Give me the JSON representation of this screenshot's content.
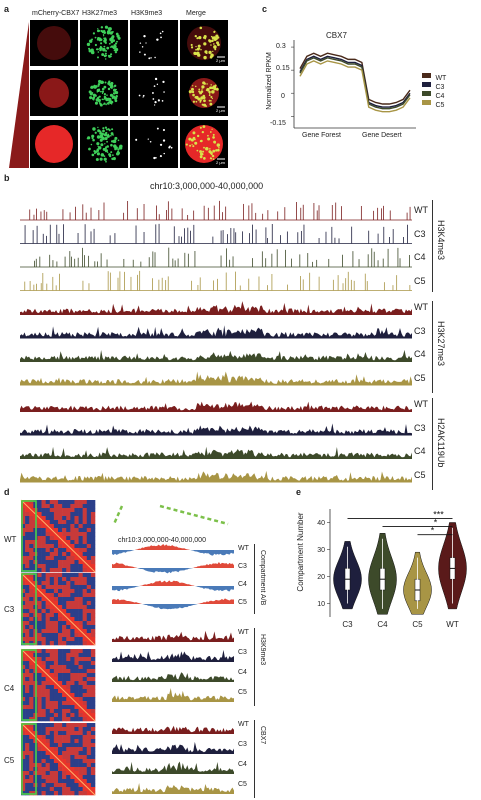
{
  "panel_labels": {
    "a": "a",
    "b": "b",
    "c": "c",
    "d": "d",
    "e": "e"
  },
  "panel_a": {
    "columns": [
      "mCherry-CBX7",
      "H3K27me3",
      "H3K9me3",
      "Merge"
    ],
    "scale_bar": "2 μm"
  },
  "panel_c": {
    "title": "CBX7",
    "ylabel": "Normalized RPKM",
    "xlabels": [
      "Gene Forest",
      "Gene Desert"
    ],
    "legend": [
      {
        "name": "WT",
        "color": "#4a2a1a"
      },
      {
        "name": "C3",
        "color": "#1e1f3d"
      },
      {
        "name": "C4",
        "color": "#3d4a2a"
      },
      {
        "name": "C5",
        "color": "#a89545"
      }
    ],
    "yticks": [
      "0.3",
      "0.15",
      "0",
      "-0.15"
    ]
  },
  "panel_b": {
    "region": "chr10:3,000,000-40,000,000",
    "groups": [
      {
        "mark": "H3K4me3",
        "tracks": [
          "WT",
          "C3",
          "C4",
          "C5"
        ]
      },
      {
        "mark": "H3K27me3",
        "tracks": [
          "WT",
          "C3",
          "C4",
          "C5"
        ]
      },
      {
        "mark": "H2AK119Ub",
        "tracks": [
          "WT",
          "C3",
          "C4",
          "C5"
        ]
      }
    ]
  },
  "panel_d": {
    "heatmap_labels": [
      "WT",
      "C3",
      "C4",
      "C5"
    ],
    "region": "chr10:3,000,000-40,000,000",
    "groups": [
      {
        "mark": "Compartment A/B",
        "tracks": [
          "WT",
          "C3",
          "C4",
          "C5"
        ]
      },
      {
        "mark": "H3K9me3",
        "tracks": [
          "WT",
          "C3",
          "C4",
          "C5"
        ]
      },
      {
        "mark": "CBX7",
        "tracks": [
          "WT",
          "C3",
          "C4",
          "C5"
        ]
      }
    ]
  },
  "chart_data": {
    "type": "violin",
    "title": "",
    "ylabel": "Compartment Number",
    "categories": [
      "C3",
      "C4",
      "C5",
      "WT"
    ],
    "yticks": [
      10,
      20,
      30,
      40
    ],
    "ylim": [
      5,
      45
    ],
    "medians": [
      19,
      19,
      15,
      23
    ],
    "colors": [
      "#1e1f3d",
      "#3d4a2a",
      "#a89545",
      "#5a1a1a"
    ],
    "significance": [
      "***",
      "*",
      "*"
    ]
  },
  "colors": {
    "wt": "#7a1e1e",
    "c3": "#1e1f3d",
    "c4": "#3d4a2a",
    "c5": "#a89545",
    "compartment_a": "#e04a3a",
    "compartment_b": "#4a7ab8"
  }
}
